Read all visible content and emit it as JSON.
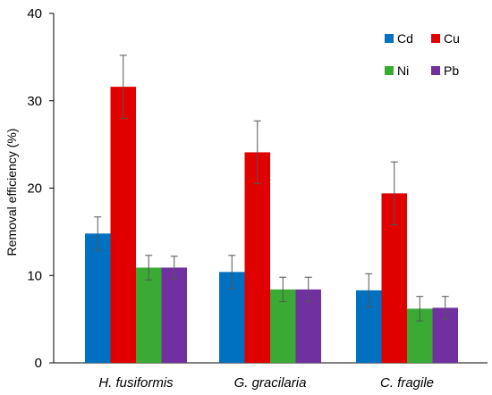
{
  "chart_data": {
    "type": "bar",
    "title": "",
    "xlabel": "",
    "ylabel": "Removal efficiency (%)",
    "ylim": [
      0,
      40
    ],
    "yticks": [
      0,
      10,
      20,
      30,
      40
    ],
    "grid": false,
    "legend_position": "top-right",
    "categories": [
      "H. fusiformis",
      "G. gracilaria",
      "C. fragile"
    ],
    "series": [
      {
        "name": "Cd",
        "color": "#0070c0",
        "values": [
          14.8,
          10.4,
          8.3
        ],
        "errors": [
          1.9,
          1.9,
          1.9
        ]
      },
      {
        "name": "Cu",
        "color": "#e00000",
        "values": [
          31.6,
          24.1,
          19.4
        ],
        "errors": [
          3.6,
          3.6,
          3.6
        ]
      },
      {
        "name": "Ni",
        "color": "#3aaa35",
        "values": [
          10.9,
          8.4,
          6.2
        ],
        "errors": [
          1.4,
          1.4,
          1.4
        ]
      },
      {
        "name": "Pb",
        "color": "#7030a0",
        "values": [
          10.9,
          8.4,
          6.3
        ],
        "errors": [
          1.3,
          1.4,
          1.3
        ]
      }
    ]
  }
}
